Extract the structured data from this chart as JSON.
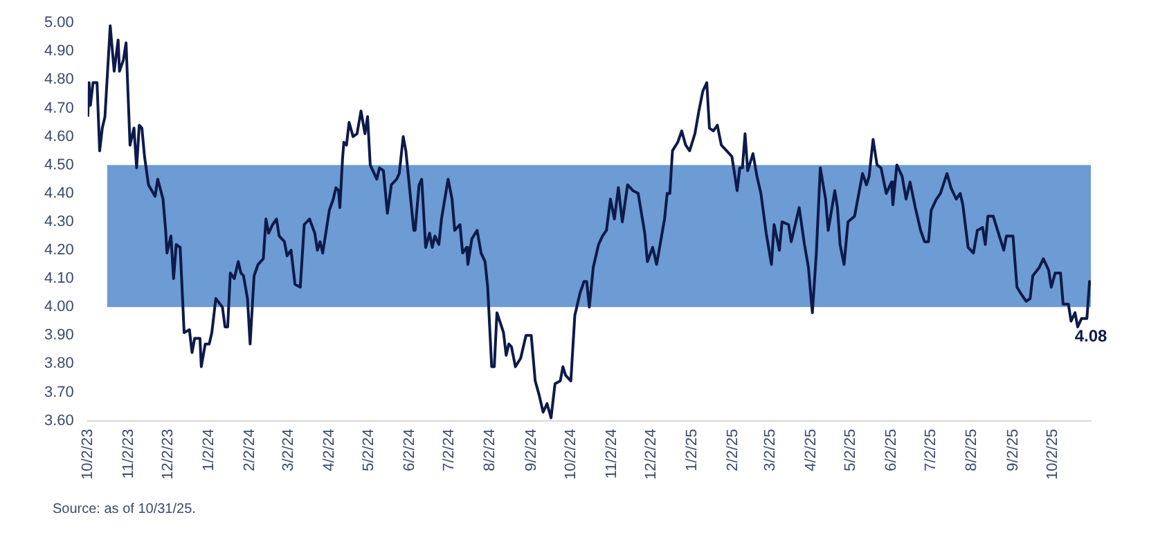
{
  "chart_data": {
    "type": "line",
    "x": [
      "2023-10-02",
      "2023-10-03",
      "2023-10-04",
      "2023-10-06",
      "2023-10-09",
      "2023-10-11",
      "2023-10-13",
      "2023-10-15",
      "2023-10-19",
      "2023-10-22",
      "2023-10-25",
      "2023-10-26",
      "2023-10-29",
      "2023-10-31",
      "2023-11-03",
      "2023-11-06",
      "2023-11-08",
      "2023-11-10",
      "2023-11-12",
      "2023-11-14",
      "2023-11-17",
      "2023-11-22",
      "2023-11-24",
      "2023-11-28",
      "2023-11-30",
      "2023-12-01",
      "2023-12-04",
      "2023-12-06",
      "2023-12-08",
      "2023-12-11",
      "2023-12-14",
      "2023-12-18",
      "2023-12-20",
      "2023-12-22",
      "2023-12-26",
      "2023-12-27",
      "2023-12-30",
      "2024-01-02",
      "2024-01-04",
      "2024-01-07",
      "2024-01-12",
      "2024-01-14",
      "2024-01-16",
      "2024-01-18",
      "2024-01-21",
      "2024-01-24",
      "2024-01-26",
      "2024-01-28",
      "2024-01-31",
      "2024-02-02",
      "2024-02-05",
      "2024-02-08",
      "2024-02-12",
      "2024-02-14",
      "2024-02-16",
      "2024-02-19",
      "2024-02-22",
      "2024-02-24",
      "2024-02-28",
      "2024-03-01",
      "2024-03-04",
      "2024-03-07",
      "2024-03-11",
      "2024-03-14",
      "2024-03-18",
      "2024-03-22",
      "2024-03-24",
      "2024-03-26",
      "2024-03-28",
      "2024-04-02",
      "2024-04-05",
      "2024-04-07",
      "2024-04-09",
      "2024-04-10",
      "2024-04-12",
      "2024-04-13",
      "2024-04-15",
      "2024-04-17",
      "2024-04-20",
      "2024-04-23",
      "2024-04-26",
      "2024-04-29",
      "2024-05-01",
      "2024-05-03",
      "2024-05-08",
      "2024-05-10",
      "2024-05-13",
      "2024-05-16",
      "2024-05-19",
      "2024-05-23",
      "2024-05-25",
      "2024-05-28",
      "2024-05-30",
      "2024-06-02",
      "2024-06-05",
      "2024-06-06",
      "2024-06-09",
      "2024-06-11",
      "2024-06-14",
      "2024-06-17",
      "2024-06-19",
      "2024-06-21",
      "2024-06-24",
      "2024-06-26",
      "2024-07-01",
      "2024-07-04",
      "2024-07-06",
      "2024-07-10",
      "2024-07-12",
      "2024-07-15",
      "2024-07-16",
      "2024-07-19",
      "2024-07-23",
      "2024-07-26",
      "2024-07-29",
      "2024-07-31",
      "2024-08-03",
      "2024-08-05",
      "2024-08-07",
      "2024-08-12",
      "2024-08-14",
      "2024-08-16",
      "2024-08-18",
      "2024-08-21",
      "2024-08-25",
      "2024-08-29",
      "2024-09-02",
      "2024-09-05",
      "2024-09-08",
      "2024-09-11",
      "2024-09-14",
      "2024-09-17",
      "2024-09-20",
      "2024-09-24",
      "2024-09-26",
      "2024-09-28",
      "2024-10-02",
      "2024-10-05",
      "2024-10-09",
      "2024-10-12",
      "2024-10-14",
      "2024-10-16",
      "2024-10-19",
      "2024-10-23",
      "2024-10-26",
      "2024-10-29",
      "2024-11-01",
      "2024-11-04",
      "2024-11-07",
      "2024-11-10",
      "2024-11-14",
      "2024-11-18",
      "2024-11-22",
      "2024-11-27",
      "2024-11-29",
      "2024-12-03",
      "2024-12-06",
      "2024-12-12",
      "2024-12-14",
      "2024-12-16",
      "2024-12-18",
      "2024-12-22",
      "2024-12-25",
      "2024-12-28",
      "2024-12-31",
      "2025-01-04",
      "2025-01-07",
      "2025-01-10",
      "2025-01-13",
      "2025-01-15",
      "2025-01-18",
      "2025-01-21",
      "2025-01-24",
      "2025-01-28",
      "2025-02-01",
      "2025-02-05",
      "2025-02-07",
      "2025-02-09",
      "2025-02-11",
      "2025-02-13",
      "2025-02-17",
      "2025-02-20",
      "2025-02-23",
      "2025-02-27",
      "2025-03-03",
      "2025-03-05",
      "2025-03-09",
      "2025-03-11",
      "2025-03-16",
      "2025-03-18",
      "2025-03-21",
      "2025-03-24",
      "2025-03-28",
      "2025-03-31",
      "2025-04-03",
      "2025-04-06",
      "2025-04-09",
      "2025-04-13",
      "2025-04-15",
      "2025-04-20",
      "2025-04-22",
      "2025-04-24",
      "2025-04-27",
      "2025-04-30",
      "2025-05-05",
      "2025-05-07",
      "2025-05-11",
      "2025-05-14",
      "2025-05-16",
      "2025-05-19",
      "2025-05-22",
      "2025-05-25",
      "2025-05-29",
      "2025-06-02",
      "2025-06-03",
      "2025-06-06",
      "2025-06-10",
      "2025-06-13",
      "2025-06-16",
      "2025-06-20",
      "2025-06-24",
      "2025-06-27",
      "2025-06-30",
      "2025-07-02",
      "2025-07-06",
      "2025-07-09",
      "2025-07-14",
      "2025-07-17",
      "2025-07-21",
      "2025-07-24",
      "2025-07-26",
      "2025-07-30",
      "2025-08-03",
      "2025-08-06",
      "2025-08-10",
      "2025-08-12",
      "2025-08-14",
      "2025-08-18",
      "2025-08-22",
      "2025-08-26",
      "2025-08-28",
      "2025-09-02",
      "2025-09-05",
      "2025-09-09",
      "2025-09-12",
      "2025-09-15",
      "2025-09-17",
      "2025-09-22",
      "2025-09-25",
      "2025-09-29",
      "2025-10-01",
      "2025-10-04",
      "2025-10-08",
      "2025-10-10",
      "2025-10-14",
      "2025-10-16",
      "2025-10-19",
      "2025-10-21",
      "2025-10-24",
      "2025-10-28",
      "2025-10-30",
      "2025-10-31"
    ],
    "series": [
      {
        "color": "#0d1a4a",
        "values": [
          4.67,
          4.79,
          4.71,
          4.79,
          4.79,
          4.55,
          4.63,
          4.67,
          4.99,
          4.83,
          4.94,
          4.83,
          4.87,
          4.93,
          4.57,
          4.63,
          4.49,
          4.64,
          4.63,
          4.53,
          4.43,
          4.39,
          4.45,
          4.38,
          4.27,
          4.19,
          4.25,
          4.1,
          4.22,
          4.21,
          3.91,
          3.92,
          3.84,
          3.89,
          3.89,
          3.79,
          3.87,
          3.87,
          3.91,
          4.03,
          4.0,
          3.93,
          3.93,
          4.12,
          4.1,
          4.16,
          4.12,
          4.11,
          4.03,
          3.87,
          4.11,
          4.15,
          4.17,
          4.31,
          4.26,
          4.29,
          4.31,
          4.25,
          4.23,
          4.18,
          4.2,
          4.08,
          4.07,
          4.29,
          4.31,
          4.26,
          4.2,
          4.23,
          4.19,
          4.34,
          4.38,
          4.42,
          4.41,
          4.35,
          4.52,
          4.58,
          4.57,
          4.65,
          4.6,
          4.61,
          4.69,
          4.61,
          4.67,
          4.5,
          4.45,
          4.49,
          4.48,
          4.33,
          4.43,
          4.45,
          4.47,
          4.6,
          4.55,
          4.41,
          4.27,
          4.27,
          4.43,
          4.45,
          4.21,
          4.26,
          4.21,
          4.25,
          4.22,
          4.31,
          4.45,
          4.38,
          4.27,
          4.29,
          4.19,
          4.21,
          4.15,
          4.24,
          4.27,
          4.19,
          4.16,
          4.07,
          3.79,
          3.79,
          3.98,
          3.91,
          3.83,
          3.87,
          3.86,
          3.79,
          3.82,
          3.9,
          3.9,
          3.74,
          3.69,
          3.63,
          3.66,
          3.61,
          3.73,
          3.74,
          3.79,
          3.76,
          3.74,
          3.97,
          4.05,
          4.09,
          4.09,
          4.0,
          4.14,
          4.22,
          4.25,
          4.27,
          4.38,
          4.31,
          4.42,
          4.3,
          4.43,
          4.41,
          4.4,
          4.26,
          4.16,
          4.21,
          4.15,
          4.31,
          4.4,
          4.4,
          4.55,
          4.58,
          4.62,
          4.57,
          4.55,
          4.61,
          4.69,
          4.76,
          4.79,
          4.63,
          4.62,
          4.64,
          4.57,
          4.55,
          4.53,
          4.41,
          4.49,
          4.49,
          4.61,
          4.48,
          4.54,
          4.46,
          4.4,
          4.26,
          4.15,
          4.29,
          4.2,
          4.3,
          4.29,
          4.23,
          4.29,
          4.35,
          4.22,
          4.14,
          3.98,
          4.19,
          4.49,
          4.38,
          4.27,
          4.41,
          4.35,
          4.22,
          4.15,
          4.3,
          4.32,
          4.37,
          4.47,
          4.43,
          4.46,
          4.59,
          4.5,
          4.49,
          4.4,
          4.44,
          4.36,
          4.5,
          4.46,
          4.38,
          4.44,
          4.35,
          4.27,
          4.23,
          4.23,
          4.34,
          4.38,
          4.4,
          4.47,
          4.42,
          4.38,
          4.4,
          4.36,
          4.21,
          4.19,
          4.27,
          4.28,
          4.22,
          4.32,
          4.32,
          4.26,
          4.2,
          4.25,
          4.25,
          4.07,
          4.04,
          4.02,
          4.03,
          4.11,
          4.14,
          4.17,
          4.13,
          4.07,
          4.12,
          4.12,
          4.01,
          4.01,
          3.95,
          3.98,
          3.93,
          3.96,
          3.96,
          4.09,
          4.08
        ]
      }
    ],
    "xticks": [
      {
        "value": "2023-10-02",
        "label": "10/2/23"
      },
      {
        "value": "2023-11-02",
        "label": "11/2/23"
      },
      {
        "value": "2023-12-02",
        "label": "12/2/23"
      },
      {
        "value": "2024-01-02",
        "label": "1/2/24"
      },
      {
        "value": "2024-02-02",
        "label": "2/2/24"
      },
      {
        "value": "2024-03-02",
        "label": "3/2/24"
      },
      {
        "value": "2024-04-02",
        "label": "4/2/24"
      },
      {
        "value": "2024-05-02",
        "label": "5/2/24"
      },
      {
        "value": "2024-06-02",
        "label": "6/2/24"
      },
      {
        "value": "2024-07-02",
        "label": "7/2/24"
      },
      {
        "value": "2024-08-02",
        "label": "8/2/24"
      },
      {
        "value": "2024-09-02",
        "label": "9/2/24"
      },
      {
        "value": "2024-10-02",
        "label": "10/2/24"
      },
      {
        "value": "2024-11-02",
        "label": "11/2/24"
      },
      {
        "value": "2024-12-02",
        "label": "12/2/24"
      },
      {
        "value": "2025-01-02",
        "label": "1/2/25"
      },
      {
        "value": "2025-02-02",
        "label": "2/2/25"
      },
      {
        "value": "2025-03-02",
        "label": "3/2/25"
      },
      {
        "value": "2025-04-02",
        "label": "4/2/25"
      },
      {
        "value": "2025-05-02",
        "label": "5/2/25"
      },
      {
        "value": "2025-06-02",
        "label": "6/2/25"
      },
      {
        "value": "2025-07-02",
        "label": "7/2/25"
      },
      {
        "value": "2025-08-02",
        "label": "8/2/25"
      },
      {
        "value": "2025-09-02",
        "label": "9/2/25"
      },
      {
        "value": "2025-10-02",
        "label": "10/2/25"
      }
    ],
    "xlim": [
      "2023-10-02",
      "2025-10-31"
    ],
    "ylim": [
      3.6,
      5.0
    ],
    "yticks": [
      {
        "value": 3.6,
        "label": "3.60"
      },
      {
        "value": 3.7,
        "label": "3.70"
      },
      {
        "value": 3.8,
        "label": "3.80"
      },
      {
        "value": 3.9,
        "label": "3.90"
      },
      {
        "value": 4.0,
        "label": "4.00"
      },
      {
        "value": 4.1,
        "label": "4.10"
      },
      {
        "value": 4.2,
        "label": "4.20"
      },
      {
        "value": 4.3,
        "label": "4.30"
      },
      {
        "value": 4.4,
        "label": "4.40"
      },
      {
        "value": 4.5,
        "label": "4.50"
      },
      {
        "value": 4.6,
        "label": "4.60"
      },
      {
        "value": 4.7,
        "label": "4.70"
      },
      {
        "value": 4.8,
        "label": "4.80"
      },
      {
        "value": 4.9,
        "label": "4.90"
      },
      {
        "value": 5.0,
        "label": "5.00"
      }
    ],
    "bands": [
      {
        "axis": "y",
        "from": 4.0,
        "to": 4.5,
        "color": "#6d9bd3"
      }
    ],
    "annotations": [
      {
        "text": "4.08",
        "x": "2025-10-31",
        "y": 4.08
      },
      "Source: as of 10/31/25."
    ],
    "grid": false,
    "legend": false,
    "marker": "none",
    "line_style": "solid"
  }
}
